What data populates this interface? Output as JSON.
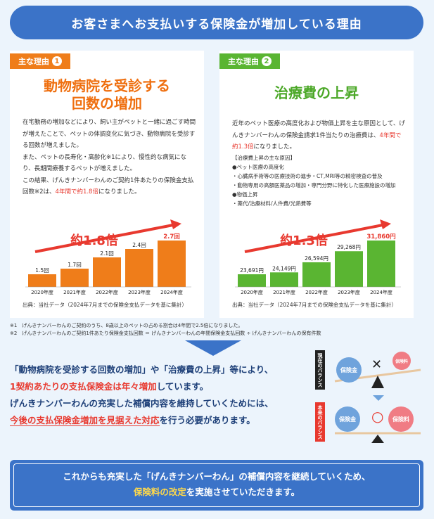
{
  "header": {
    "title": "お客さまへお支払いする保険金が増加している理由"
  },
  "reason1": {
    "tag_label": "主な理由",
    "tag_num": "1",
    "title_line1": "動物病院を受診する",
    "title_line2": "回数の増加",
    "p1": "在宅勤務の増加などにより、飼い主がペットと一緒に過ごす時間が増えたことで、ペットの体調変化に気づき、動物病院を受診する回数が増えました。",
    "p2": "また、ペットの長寿化・高齢化※1により、慢性的な病気になり、長期間療養するペットが増えました。",
    "p3a": "この結果、げんきナンバーわんのご契約1件あたりの保険金支払回数※2は、",
    "p3b": "4年間で約1.8倍",
    "p3c": "になりました。",
    "multiplier": "約1.8倍",
    "source": "出典：当社データ（2024年7月までの保険金支払データを基に集計）"
  },
  "reason2": {
    "tag_label": "主な理由",
    "tag_num": "2",
    "title": "治療費の上昇",
    "p1a": "近年のペット医療の高度化および物価上昇を主な原因として、げんきナンバーわんの保険金請求1件当たりの治療費は、",
    "p1b": "4年間で約1.3倍",
    "p1c": "になりました。",
    "list_head": "【治療費上昇の主な原因】",
    "list": [
      "●ペット医療の高度化",
      "・心臓病手術等の医療技術の進歩・CT,MRI等の精密検査の普及",
      "・動物専用の高額医薬品の増加・専門分野に特化した医療施設の増加",
      "●物価上昇",
      "・薬代/治療材料/人件費/光熱費等"
    ],
    "multiplier": "約1.3倍",
    "source": "出典：当社データ（2024年7月までの保険金支払データを基に集計）"
  },
  "chart_data": [
    {
      "type": "bar",
      "categories": [
        "2020年度",
        "2021年度",
        "2022年度",
        "2023年度",
        "2024年度"
      ],
      "values": [
        1.5,
        1.7,
        2.1,
        2.4,
        2.7
      ],
      "labels": [
        "1.5回",
        "1.7回",
        "2.1回",
        "2.4回",
        "2.7回"
      ],
      "color": "#ef7d1a",
      "highlight_color": "#e8392f"
    },
    {
      "type": "bar",
      "categories": [
        "2020年度",
        "2021年度",
        "2022年度",
        "2023年度",
        "2024年度"
      ],
      "values": [
        23691,
        24149,
        26594,
        29268,
        31860
      ],
      "labels": [
        "23,691円",
        "24,149円",
        "26,594円",
        "29,268円",
        "31,860円"
      ],
      "color": "#5ab532",
      "highlight_color": "#e8392f"
    }
  ],
  "notes": {
    "n1": "※1　げんきナンバーわんのご契約のうち、8歳以上のペットの占める割合は4年間で2.5倍になりました。",
    "n2": "※2　げんきナンバーわんのご契約1件あたり保険金支払回数 ＝ げんきナンバーわんの年間保険金支払回数 ÷ げんきナンバーわんの保有件数"
  },
  "summary": {
    "l1a": "「動物病院を受診する回数の増加」",
    "l1b": "や",
    "l1c": "「治療費の上昇」",
    "l1d": "等により、",
    "l2a": "1契約あたりの支払保険金は年々増加",
    "l2b": "しています。",
    "l3": "げんきナンバーわんの充実した補償内容を維持していくためには、",
    "l4a": "今後の支払保険金増加を見据えた対応",
    "l4b": "を行う必要があります。"
  },
  "balance": {
    "current_label": "現在のバランス",
    "future_label": "本来のバランス",
    "claims": "保険金",
    "premium": "保険料",
    "cross": "✕",
    "circle": "○"
  },
  "bottom": {
    "l1": "これからも充実した「げんきナンバーわん」の補償内容を継続していくため、",
    "l2a": "保険料の改定",
    "l2b": "を実施させていただきます。"
  }
}
